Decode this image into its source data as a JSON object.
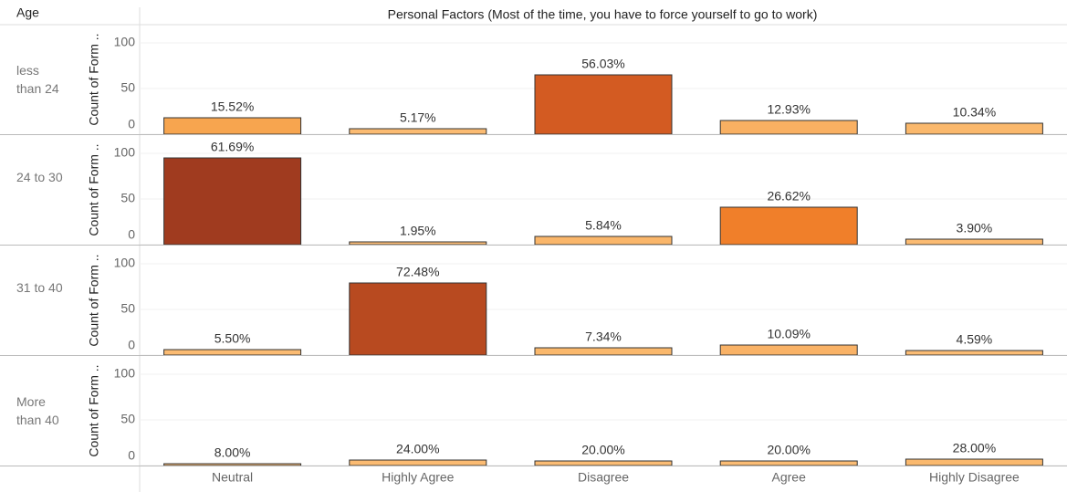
{
  "chart_data": {
    "type": "bar",
    "title": "Personal Factors (Most of the time, you have to force yourself to go to work)",
    "facet_label": "Age",
    "y_label": "Count of Form ..",
    "categories": [
      "Neutral",
      "Highly Agree",
      "Disagree",
      "Agree",
      "Highly Disagree"
    ],
    "ylim": [
      0,
      120
    ],
    "yticks": [
      0,
      50,
      100
    ],
    "grid": true,
    "series": [
      {
        "name": "less than 24",
        "values": [
          18,
          6,
          65,
          15,
          12
        ],
        "percent_labels": [
          "15.52%",
          "5.17%",
          "56.03%",
          "12.93%",
          "10.34%"
        ],
        "colors": [
          "#f7a54f",
          "#fbbb72",
          "#d35b22",
          "#f9b062",
          "#fab86c"
        ]
      },
      {
        "name": "24 to 30",
        "values": [
          95,
          3,
          9,
          41,
          6
        ],
        "percent_labels": [
          "61.69%",
          "1.95%",
          "5.84%",
          "26.62%",
          "3.90%"
        ],
        "colors": [
          "#a03b1f",
          "#fcbe78",
          "#fab66a",
          "#f07f2a",
          "#fbbb72"
        ]
      },
      {
        "name": "31 to 40",
        "values": [
          6,
          79,
          8,
          11,
          5
        ],
        "percent_labels": [
          "5.50%",
          "72.48%",
          "7.34%",
          "10.09%",
          "4.59%"
        ],
        "colors": [
          "#fbbb72",
          "#b84a20",
          "#fab86c",
          "#f9b266",
          "#fbbc74"
        ]
      },
      {
        "name": "More than 40",
        "values": [
          2,
          6,
          5,
          5,
          7
        ],
        "percent_labels": [
          "8.00%",
          "24.00%",
          "20.00%",
          "20.00%",
          "28.00%"
        ],
        "colors": [
          "#fcbf7a",
          "#fbbb72",
          "#fbbc74",
          "#fbbc74",
          "#fab96e"
        ]
      }
    ]
  }
}
